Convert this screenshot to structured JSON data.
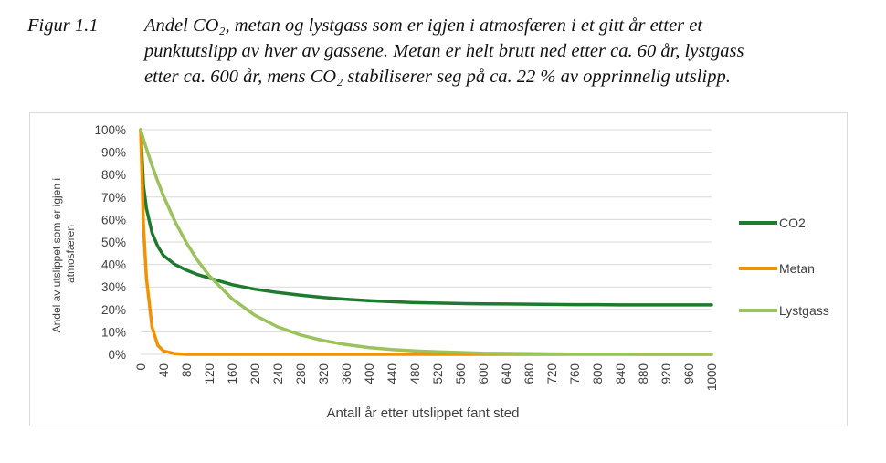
{
  "caption": {
    "label": "Figur 1.1",
    "line1": "Andel CO₂, metan og lystgass som er igjen i atmosfæren i et gitt år etter et",
    "line2": "punktutslipp av hver av gassene. Metan er helt brutt ned etter ca. 60 år, lystgass",
    "line3": "etter ca. 600 år, mens CO₂ stabiliserer seg på ca. 22 % av opprinnelig utslipp."
  },
  "chart_data": {
    "type": "line",
    "title": "",
    "xlabel": "Antall år etter utslippet fant sted",
    "ylabel_lines": [
      "Andel av utslippet som er igjen i",
      "atmosfæren"
    ],
    "xlim": [
      0,
      1000
    ],
    "ylim": [
      0,
      100
    ],
    "x_ticks": [
      0,
      40,
      80,
      120,
      160,
      200,
      240,
      280,
      320,
      360,
      400,
      440,
      480,
      520,
      560,
      600,
      640,
      680,
      720,
      760,
      800,
      840,
      880,
      920,
      960,
      1000
    ],
    "y_ticks": [
      "0%",
      "10%",
      "20%",
      "30%",
      "40%",
      "50%",
      "60%",
      "70%",
      "80%",
      "90%",
      "100%"
    ],
    "y_tick_values": [
      0,
      10,
      20,
      30,
      40,
      50,
      60,
      70,
      80,
      90,
      100
    ],
    "grid": "horizontal",
    "legend_position": "right",
    "x": [
      0,
      5,
      10,
      20,
      30,
      40,
      60,
      80,
      100,
      120,
      160,
      200,
      240,
      280,
      320,
      360,
      400,
      440,
      480,
      520,
      560,
      600,
      640,
      680,
      720,
      760,
      800,
      840,
      880,
      920,
      960,
      1000
    ],
    "series": [
      {
        "name": "CO2",
        "color": "#1e7a2e",
        "values": [
          100,
          75,
          65,
          54,
          48,
          44,
          40,
          37.5,
          35.5,
          34,
          31,
          29,
          27.5,
          26.3,
          25.3,
          24.5,
          23.9,
          23.4,
          23.0,
          22.8,
          22.6,
          22.5,
          22.4,
          22.3,
          22.2,
          22.1,
          22.1,
          22.0,
          22.0,
          22.0,
          22.0,
          22.0
        ]
      },
      {
        "name": "Metan",
        "color": "#f39200",
        "values": [
          100,
          57,
          34,
          12,
          4,
          1.5,
          0.3,
          0,
          0,
          0,
          0,
          0,
          0,
          0,
          0,
          0,
          0,
          0,
          0,
          0,
          0,
          0,
          0,
          0,
          0,
          0,
          0,
          0,
          0,
          0,
          0,
          0
        ]
      },
      {
        "name": "Lystgass",
        "color": "#9bc25b",
        "values": [
          100,
          95.7,
          91.6,
          84,
          77,
          70.5,
          59.2,
          49.7,
          41.7,
          35.0,
          24.7,
          17.4,
          12.2,
          8.6,
          6.1,
          4.3,
          3.0,
          2.1,
          1.5,
          1.1,
          0.8,
          0.5,
          0.4,
          0.3,
          0.2,
          0.1,
          0.1,
          0.1,
          0,
          0,
          0,
          0
        ]
      }
    ]
  }
}
